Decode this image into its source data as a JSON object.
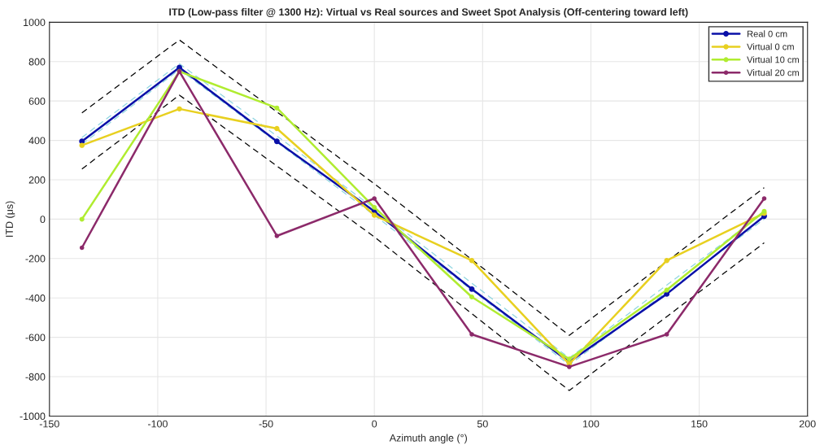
{
  "chart_data": {
    "type": "line",
    "title": "ITD (Low-pass filter @ 1300 Hz): Virtual vs Real sources and Sweet Spot Analysis (Off-centering toward left)",
    "xlabel": "Azimuth angle (°)",
    "ylabel": "ITD (μs)",
    "x": [
      -135,
      -90,
      -45,
      0,
      45,
      90,
      135,
      180
    ],
    "series": [
      {
        "color": "#000000",
        "line_style": "dashed",
        "marker": "none",
        "x": [
          -135,
          -90,
          0,
          90,
          180
        ],
        "values": [
          540,
          910,
          180,
          -590,
          160
        ]
      },
      {
        "color": "#000000",
        "line_style": "dashed",
        "marker": "none",
        "x": [
          -135,
          -90,
          0,
          90,
          180
        ],
        "values": [
          255,
          630,
          -90,
          -870,
          -120
        ]
      },
      {
        "color": "#8fd6e0",
        "line_style": "dashed",
        "marker": "none",
        "x": [
          -135,
          -90,
          0,
          90,
          180
        ],
        "values": [
          415,
          790,
          55,
          -705,
          35
        ]
      },
      {
        "color": "#8fd6e0",
        "line_style": "dashed",
        "marker": "none",
        "x": [
          -135,
          -90,
          0,
          90,
          180
        ],
        "values": [
          380,
          760,
          20,
          -740,
          0
        ]
      },
      {
        "name": "Real 0 cm",
        "color": "#0a10a8",
        "values": [
          395,
          770,
          395,
          40,
          -355,
          -725,
          -380,
          15
        ]
      },
      {
        "name": "Virtual 0 cm",
        "color": "#e8d020",
        "values": [
          375,
          560,
          460,
          20,
          -210,
          -735,
          -210,
          30
        ]
      },
      {
        "name": "Virtual 10 cm",
        "color": "#b0ec30",
        "values": [
          0,
          750,
          565,
          60,
          -395,
          -710,
          -360,
          40
        ]
      },
      {
        "name": "Virtual 20 cm",
        "color": "#8c2a6a",
        "values": [
          -145,
          750,
          -85,
          105,
          -585,
          -750,
          -585,
          105
        ]
      }
    ],
    "xlim": [
      -150,
      200
    ],
    "xticks": [
      -150,
      -100,
      -50,
      0,
      50,
      100,
      150,
      200
    ],
    "ylim": [
      -1000,
      1000
    ],
    "yticks": [
      -1000,
      -800,
      -600,
      -400,
      -200,
      0,
      200,
      400,
      600,
      800,
      1000
    ],
    "grid": true,
    "legend": "top right",
    "marker": "circle",
    "line_style": "solid"
  }
}
